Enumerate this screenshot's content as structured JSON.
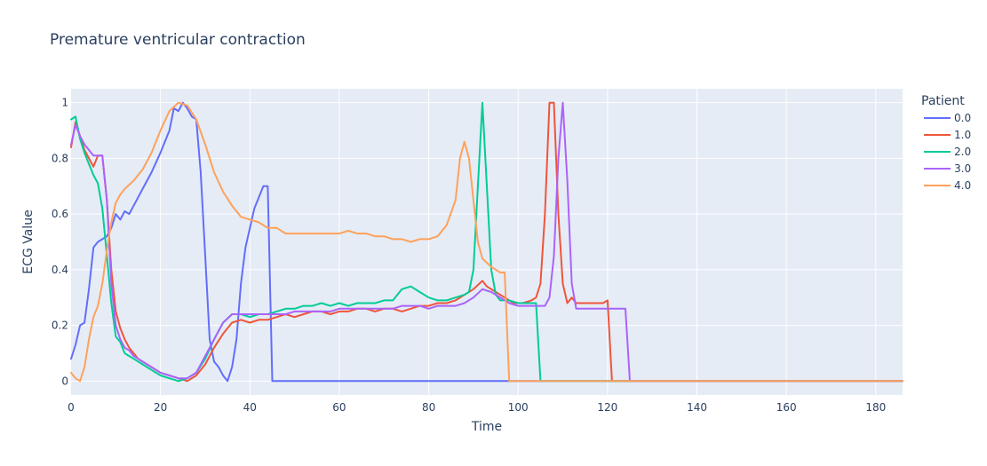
{
  "chart_data": {
    "type": "line",
    "title": "Premature ventricular contraction",
    "xlabel": "Time",
    "ylabel": "ECG Value",
    "xlim": [
      0,
      186
    ],
    "ylim": [
      -0.05,
      1.05
    ],
    "x_ticks": [
      0,
      20,
      40,
      60,
      80,
      100,
      120,
      140,
      160,
      180
    ],
    "y_ticks": [
      0,
      0.2,
      0.4,
      0.6,
      0.8,
      1
    ],
    "y_tick_labels": [
      "0",
      "0.2",
      "0.4",
      "0.6",
      "0.8",
      "1"
    ],
    "grid": true,
    "plot_background": "#e5ecf6",
    "legend": {
      "title": "Patient",
      "placement": "right"
    },
    "series": [
      {
        "name": "0.0",
        "color": "#636efa",
        "points": [
          [
            0,
            0.08
          ],
          [
            1,
            0.13
          ],
          [
            2,
            0.2
          ],
          [
            3,
            0.21
          ],
          [
            4,
            0.33
          ],
          [
            5,
            0.48
          ],
          [
            6,
            0.5
          ],
          [
            7,
            0.51
          ],
          [
            8,
            0.52
          ],
          [
            9,
            0.55
          ],
          [
            10,
            0.6
          ],
          [
            11,
            0.58
          ],
          [
            12,
            0.61
          ],
          [
            13,
            0.6
          ],
          [
            14,
            0.63
          ],
          [
            16,
            0.69
          ],
          [
            18,
            0.75
          ],
          [
            20,
            0.82
          ],
          [
            22,
            0.9
          ],
          [
            23,
            0.98
          ],
          [
            24,
            0.97
          ],
          [
            25,
            1.0
          ],
          [
            26,
            0.98
          ],
          [
            27,
            0.95
          ],
          [
            28,
            0.94
          ],
          [
            29,
            0.75
          ],
          [
            30,
            0.45
          ],
          [
            31,
            0.15
          ],
          [
            32,
            0.07
          ],
          [
            33,
            0.05
          ],
          [
            34,
            0.02
          ],
          [
            35,
            0.0
          ],
          [
            36,
            0.05
          ],
          [
            37,
            0.15
          ],
          [
            38,
            0.35
          ],
          [
            39,
            0.48
          ],
          [
            40,
            0.55
          ],
          [
            41,
            0.62
          ],
          [
            42,
            0.66
          ],
          [
            43,
            0.7
          ],
          [
            44,
            0.7
          ],
          [
            45,
            0.0
          ],
          [
            186,
            0.0
          ]
        ]
      },
      {
        "name": "1.0",
        "color": "#EF553B",
        "points": [
          [
            0,
            0.84
          ],
          [
            1,
            0.93
          ],
          [
            2,
            0.88
          ],
          [
            3,
            0.83
          ],
          [
            4,
            0.8
          ],
          [
            5,
            0.77
          ],
          [
            6,
            0.81
          ],
          [
            7,
            0.81
          ],
          [
            8,
            0.65
          ],
          [
            9,
            0.4
          ],
          [
            10,
            0.25
          ],
          [
            11,
            0.19
          ],
          [
            12,
            0.15
          ],
          [
            13,
            0.12
          ],
          [
            14,
            0.1
          ],
          [
            15,
            0.08
          ],
          [
            16,
            0.07
          ],
          [
            18,
            0.05
          ],
          [
            20,
            0.03
          ],
          [
            22,
            0.02
          ],
          [
            24,
            0.01
          ],
          [
            26,
            0.0
          ],
          [
            28,
            0.02
          ],
          [
            30,
            0.06
          ],
          [
            32,
            0.12
          ],
          [
            34,
            0.17
          ],
          [
            36,
            0.21
          ],
          [
            38,
            0.22
          ],
          [
            40,
            0.21
          ],
          [
            42,
            0.22
          ],
          [
            44,
            0.22
          ],
          [
            46,
            0.23
          ],
          [
            48,
            0.24
          ],
          [
            50,
            0.23
          ],
          [
            52,
            0.24
          ],
          [
            54,
            0.25
          ],
          [
            56,
            0.25
          ],
          [
            58,
            0.24
          ],
          [
            60,
            0.25
          ],
          [
            62,
            0.25
          ],
          [
            64,
            0.26
          ],
          [
            66,
            0.26
          ],
          [
            68,
            0.25
          ],
          [
            70,
            0.26
          ],
          [
            72,
            0.26
          ],
          [
            74,
            0.25
          ],
          [
            76,
            0.26
          ],
          [
            78,
            0.27
          ],
          [
            80,
            0.27
          ],
          [
            82,
            0.28
          ],
          [
            84,
            0.28
          ],
          [
            86,
            0.29
          ],
          [
            88,
            0.31
          ],
          [
            90,
            0.33
          ],
          [
            92,
            0.36
          ],
          [
            93,
            0.34
          ],
          [
            95,
            0.32
          ],
          [
            97,
            0.3
          ],
          [
            99,
            0.28
          ],
          [
            101,
            0.28
          ],
          [
            103,
            0.29
          ],
          [
            104,
            0.3
          ],
          [
            105,
            0.35
          ],
          [
            106,
            0.6
          ],
          [
            107,
            1.0
          ],
          [
            108,
            1.0
          ],
          [
            109,
            0.6
          ],
          [
            110,
            0.35
          ],
          [
            111,
            0.28
          ],
          [
            112,
            0.3
          ],
          [
            113,
            0.28
          ],
          [
            115,
            0.28
          ],
          [
            117,
            0.28
          ],
          [
            119,
            0.28
          ],
          [
            120,
            0.29
          ],
          [
            121,
            0.0
          ],
          [
            186,
            0.0
          ]
        ]
      },
      {
        "name": "2.0",
        "color": "#00cc96",
        "points": [
          [
            0,
            0.94
          ],
          [
            1,
            0.95
          ],
          [
            2,
            0.87
          ],
          [
            3,
            0.82
          ],
          [
            4,
            0.78
          ],
          [
            5,
            0.74
          ],
          [
            6,
            0.71
          ],
          [
            7,
            0.62
          ],
          [
            8,
            0.45
          ],
          [
            9,
            0.28
          ],
          [
            10,
            0.16
          ],
          [
            11,
            0.14
          ],
          [
            12,
            0.1
          ],
          [
            13,
            0.09
          ],
          [
            14,
            0.08
          ],
          [
            16,
            0.06
          ],
          [
            18,
            0.04
          ],
          [
            20,
            0.02
          ],
          [
            22,
            0.01
          ],
          [
            24,
            0.0
          ],
          [
            26,
            0.01
          ],
          [
            28,
            0.03
          ],
          [
            30,
            0.08
          ],
          [
            32,
            0.15
          ],
          [
            34,
            0.21
          ],
          [
            36,
            0.24
          ],
          [
            38,
            0.24
          ],
          [
            40,
            0.23
          ],
          [
            42,
            0.24
          ],
          [
            44,
            0.24
          ],
          [
            46,
            0.25
          ],
          [
            48,
            0.26
          ],
          [
            50,
            0.26
          ],
          [
            52,
            0.27
          ],
          [
            54,
            0.27
          ],
          [
            56,
            0.28
          ],
          [
            58,
            0.27
          ],
          [
            60,
            0.28
          ],
          [
            62,
            0.27
          ],
          [
            64,
            0.28
          ],
          [
            66,
            0.28
          ],
          [
            68,
            0.28
          ],
          [
            70,
            0.29
          ],
          [
            72,
            0.29
          ],
          [
            74,
            0.33
          ],
          [
            76,
            0.34
          ],
          [
            78,
            0.32
          ],
          [
            80,
            0.3
          ],
          [
            82,
            0.29
          ],
          [
            84,
            0.29
          ],
          [
            86,
            0.3
          ],
          [
            88,
            0.31
          ],
          [
            89,
            0.32
          ],
          [
            90,
            0.4
          ],
          [
            91,
            0.7
          ],
          [
            92,
            1.0
          ],
          [
            93,
            0.7
          ],
          [
            94,
            0.4
          ],
          [
            95,
            0.31
          ],
          [
            96,
            0.29
          ],
          [
            98,
            0.29
          ],
          [
            100,
            0.28
          ],
          [
            102,
            0.28
          ],
          [
            104,
            0.28
          ],
          [
            105,
            0.0
          ],
          [
            186,
            0.0
          ]
        ]
      },
      {
        "name": "3.0",
        "color": "#ab63fa",
        "points": [
          [
            0,
            0.85
          ],
          [
            1,
            0.92
          ],
          [
            2,
            0.88
          ],
          [
            3,
            0.85
          ],
          [
            4,
            0.83
          ],
          [
            5,
            0.81
          ],
          [
            6,
            0.81
          ],
          [
            7,
            0.81
          ],
          [
            8,
            0.65
          ],
          [
            9,
            0.35
          ],
          [
            10,
            0.2
          ],
          [
            11,
            0.15
          ],
          [
            12,
            0.12
          ],
          [
            13,
            0.11
          ],
          [
            14,
            0.09
          ],
          [
            15,
            0.08
          ],
          [
            16,
            0.07
          ],
          [
            18,
            0.05
          ],
          [
            20,
            0.03
          ],
          [
            22,
            0.02
          ],
          [
            24,
            0.01
          ],
          [
            26,
            0.01
          ],
          [
            28,
            0.03
          ],
          [
            30,
            0.09
          ],
          [
            32,
            0.15
          ],
          [
            34,
            0.21
          ],
          [
            36,
            0.24
          ],
          [
            38,
            0.24
          ],
          [
            40,
            0.24
          ],
          [
            42,
            0.24
          ],
          [
            44,
            0.24
          ],
          [
            46,
            0.24
          ],
          [
            48,
            0.24
          ],
          [
            50,
            0.25
          ],
          [
            52,
            0.25
          ],
          [
            54,
            0.25
          ],
          [
            56,
            0.25
          ],
          [
            58,
            0.25
          ],
          [
            60,
            0.26
          ],
          [
            62,
            0.26
          ],
          [
            64,
            0.26
          ],
          [
            66,
            0.26
          ],
          [
            68,
            0.26
          ],
          [
            70,
            0.26
          ],
          [
            72,
            0.26
          ],
          [
            74,
            0.27
          ],
          [
            76,
            0.27
          ],
          [
            78,
            0.27
          ],
          [
            80,
            0.26
          ],
          [
            82,
            0.27
          ],
          [
            84,
            0.27
          ],
          [
            86,
            0.27
          ],
          [
            88,
            0.28
          ],
          [
            90,
            0.3
          ],
          [
            92,
            0.33
          ],
          [
            94,
            0.32
          ],
          [
            96,
            0.3
          ],
          [
            98,
            0.28
          ],
          [
            100,
            0.27
          ],
          [
            102,
            0.27
          ],
          [
            104,
            0.27
          ],
          [
            106,
            0.27
          ],
          [
            107,
            0.3
          ],
          [
            108,
            0.45
          ],
          [
            109,
            0.8
          ],
          [
            110,
            1.0
          ],
          [
            111,
            0.72
          ],
          [
            112,
            0.35
          ],
          [
            113,
            0.26
          ],
          [
            115,
            0.26
          ],
          [
            117,
            0.26
          ],
          [
            119,
            0.26
          ],
          [
            121,
            0.26
          ],
          [
            123,
            0.26
          ],
          [
            124,
            0.26
          ],
          [
            125,
            0.0
          ],
          [
            186,
            0.0
          ]
        ]
      },
      {
        "name": "4.0",
        "color": "#FFA15A",
        "points": [
          [
            0,
            0.03
          ],
          [
            1,
            0.01
          ],
          [
            2,
            0.0
          ],
          [
            3,
            0.05
          ],
          [
            4,
            0.15
          ],
          [
            5,
            0.23
          ],
          [
            6,
            0.27
          ],
          [
            7,
            0.35
          ],
          [
            8,
            0.47
          ],
          [
            9,
            0.57
          ],
          [
            10,
            0.64
          ],
          [
            11,
            0.67
          ],
          [
            12,
            0.69
          ],
          [
            14,
            0.72
          ],
          [
            16,
            0.76
          ],
          [
            18,
            0.82
          ],
          [
            20,
            0.9
          ],
          [
            22,
            0.97
          ],
          [
            24,
            1.0
          ],
          [
            26,
            0.99
          ],
          [
            28,
            0.94
          ],
          [
            30,
            0.85
          ],
          [
            32,
            0.75
          ],
          [
            34,
            0.68
          ],
          [
            36,
            0.63
          ],
          [
            38,
            0.59
          ],
          [
            40,
            0.58
          ],
          [
            42,
            0.57
          ],
          [
            44,
            0.55
          ],
          [
            46,
            0.55
          ],
          [
            48,
            0.53
          ],
          [
            50,
            0.53
          ],
          [
            52,
            0.53
          ],
          [
            54,
            0.53
          ],
          [
            56,
            0.53
          ],
          [
            58,
            0.53
          ],
          [
            60,
            0.53
          ],
          [
            62,
            0.54
          ],
          [
            64,
            0.53
          ],
          [
            66,
            0.53
          ],
          [
            68,
            0.52
          ],
          [
            70,
            0.52
          ],
          [
            72,
            0.51
          ],
          [
            74,
            0.51
          ],
          [
            76,
            0.5
          ],
          [
            78,
            0.51
          ],
          [
            80,
            0.51
          ],
          [
            82,
            0.52
          ],
          [
            84,
            0.56
          ],
          [
            86,
            0.65
          ],
          [
            87,
            0.8
          ],
          [
            88,
            0.86
          ],
          [
            89,
            0.8
          ],
          [
            90,
            0.65
          ],
          [
            91,
            0.5
          ],
          [
            92,
            0.44
          ],
          [
            94,
            0.41
          ],
          [
            96,
            0.39
          ],
          [
            97,
            0.39
          ],
          [
            98,
            0.0
          ],
          [
            186,
            0.0
          ]
        ]
      }
    ]
  }
}
